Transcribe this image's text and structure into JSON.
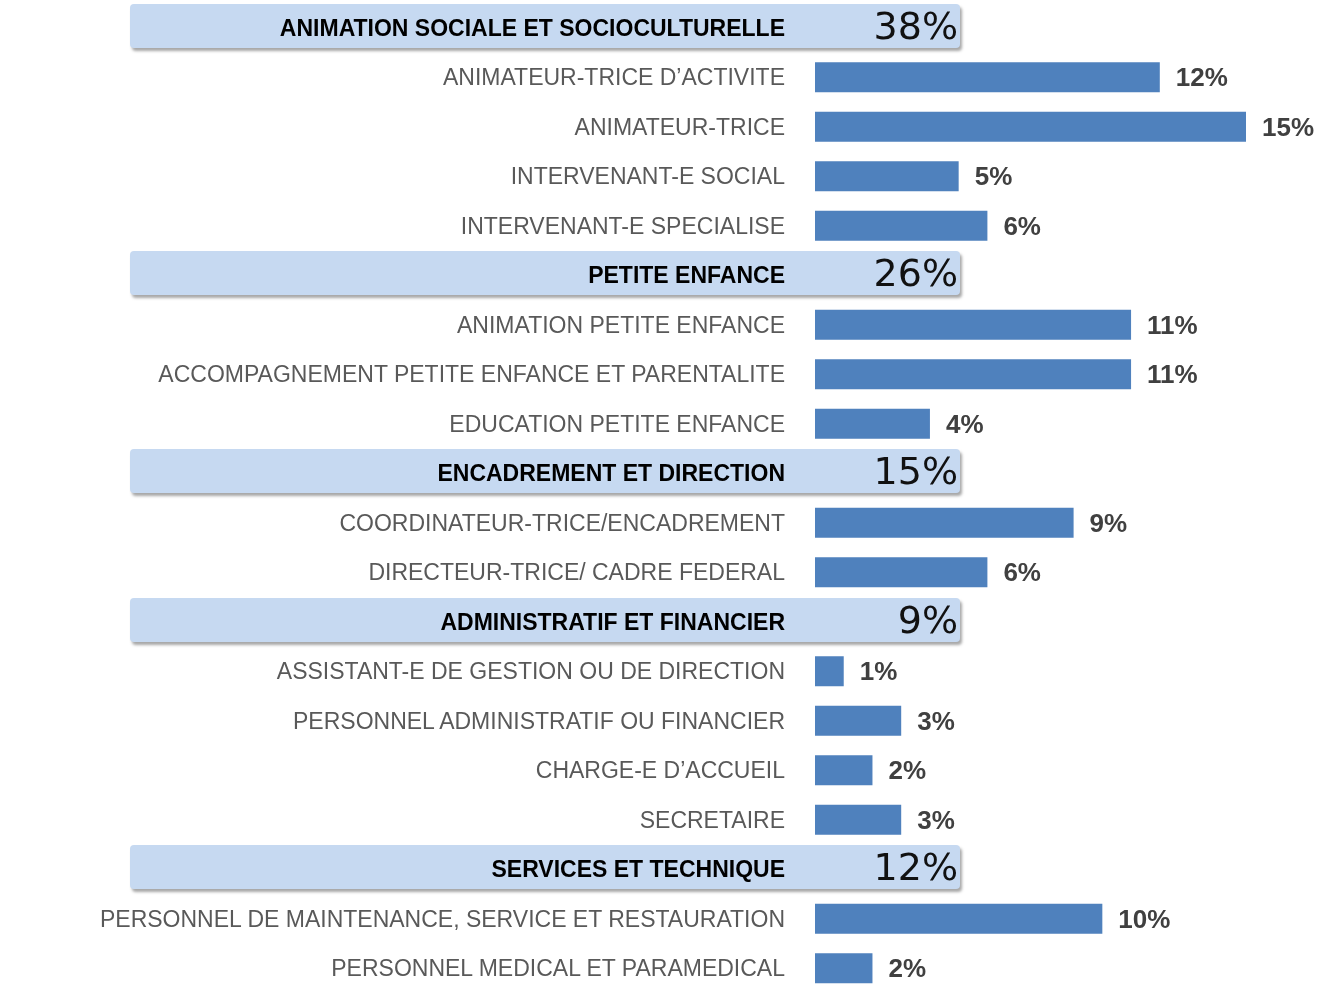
{
  "chart_data": {
    "type": "bar",
    "orientation": "horizontal",
    "categories": [
      "ANIMATION SOCIALE ET SOCIOCULTURELLE",
      "ANIMATEUR-TRICE D’ACTIVITE",
      "ANIMATEUR-TRICE",
      "INTERVENANT-E SOCIAL",
      "INTERVENANT-E SPECIALISE",
      "PETITE ENFANCE",
      "ANIMATION PETITE ENFANCE",
      "ACCOMPAGNEMENT PETITE ENFANCE ET PARENTALITE",
      "EDUCATION PETITE ENFANCE",
      "ENCADREMENT ET DIRECTION",
      "COORDINATEUR-TRICE/ENCADREMENT",
      "DIRECTEUR-TRICE/ CADRE FEDERAL",
      "ADMINISTRATIF ET FINANCIER",
      "ASSISTANT-E DE GESTION OU DE DIRECTION",
      "PERSONNEL ADMINISTRATIF OU FINANCIER",
      "CHARGE-E D’ACCUEIL",
      "SECRETAIRE",
      "SERVICES ET TECHNIQUE",
      "PERSONNEL DE MAINTENANCE, SERVICE ET RESTAURATION",
      "PERSONNEL MEDICAL ET PARAMEDICAL"
    ],
    "values": [
      null,
      12,
      15,
      5,
      6,
      null,
      11,
      11,
      4,
      null,
      9,
      6,
      null,
      1,
      3,
      2,
      3,
      null,
      10,
      2
    ],
    "value_labels": [
      null,
      "12%",
      "15%",
      "5%",
      "6%",
      null,
      "11%",
      "11%",
      "4%",
      null,
      "9%",
      "6%",
      null,
      "1%",
      "3%",
      "2%",
      "3%",
      null,
      "10%",
      "2%"
    ],
    "color": "#4f81bd",
    "annotations": [
      "38%",
      "26%",
      "15%",
      "9%",
      "12%"
    ]
  }
}
